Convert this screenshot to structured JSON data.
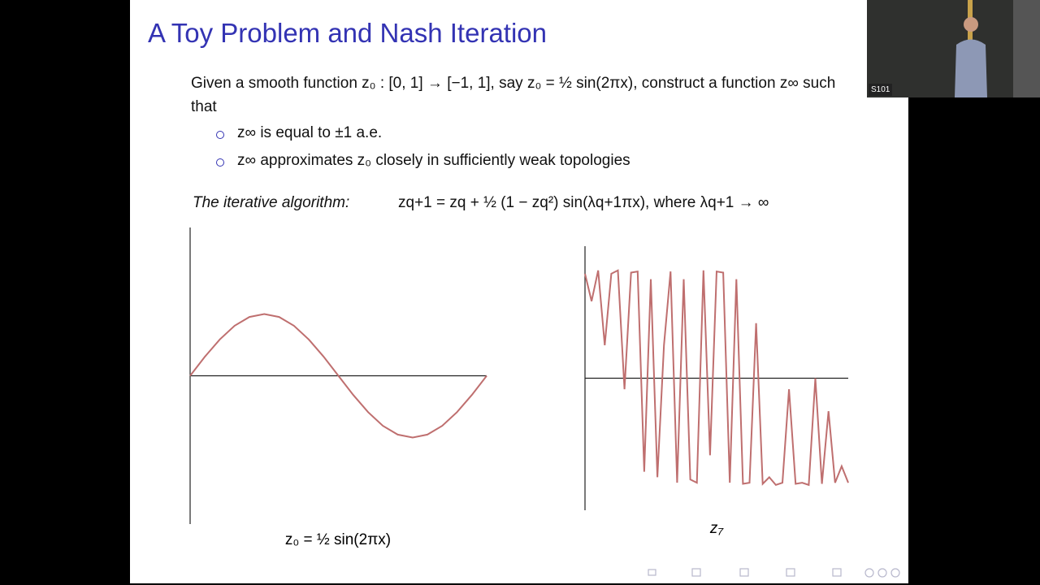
{
  "slide": {
    "title": "A Toy Problem and Nash Iteration",
    "intro": "Given a smooth function z₀ : [0, 1] → [−1, 1], say z₀ = ½ sin(2πx), construct a function z∞ such that",
    "bullets": [
      "z∞ is equal to ±1 a.e.",
      "z∞ approximates z₀ closely in sufficiently weak topologies"
    ],
    "algorithm_label": "The iterative algorithm:",
    "algorithm": "zq+1 = zq + ½ (1 − zq²) sin(λq+1πx), where λq+1 → ∞"
  },
  "chart_data": [
    {
      "type": "line",
      "caption": "z₀ = ½ sin(2πx)",
      "xlim": [
        0,
        1
      ],
      "ylim": [
        -1.2,
        1.2
      ],
      "x": [
        0,
        0.05,
        0.1,
        0.15,
        0.2,
        0.25,
        0.3,
        0.35,
        0.4,
        0.45,
        0.5,
        0.55,
        0.6,
        0.65,
        0.7,
        0.75,
        0.8,
        0.85,
        0.9,
        0.95,
        1
      ],
      "series": [
        {
          "color": "#bf6f6f",
          "values": [
            0,
            0.155,
            0.294,
            0.405,
            0.476,
            0.5,
            0.476,
            0.405,
            0.294,
            0.155,
            0,
            -0.155,
            -0.294,
            -0.405,
            -0.476,
            -0.5,
            -0.476,
            -0.405,
            -0.294,
            -0.155,
            0
          ]
        }
      ]
    },
    {
      "type": "line",
      "caption": "z₇",
      "xlim": [
        0,
        1
      ],
      "ylim": [
        -1.2,
        1.2
      ],
      "x": [
        0,
        0.025,
        0.05,
        0.075,
        0.1,
        0.125,
        0.15,
        0.175,
        0.2,
        0.225,
        0.25,
        0.275,
        0.3,
        0.325,
        0.35,
        0.375,
        0.4,
        0.425,
        0.45,
        0.475,
        0.5,
        0.525,
        0.55,
        0.575,
        0.6,
        0.625,
        0.65,
        0.675,
        0.7,
        0.725,
        0.75,
        0.775,
        0.8,
        0.825,
        0.85,
        0.875,
        0.9,
        0.925,
        0.95,
        0.975,
        1
      ],
      "series": [
        {
          "color": "#bf6f6f",
          "values": [
            0.95,
            0.7,
            0.98,
            0.3,
            0.95,
            0.98,
            -0.1,
            0.96,
            0.97,
            -0.85,
            0.9,
            -0.9,
            0.3,
            0.97,
            -0.95,
            0.9,
            -0.92,
            -0.95,
            0.98,
            -0.7,
            0.97,
            0.96,
            -0.95,
            0.9,
            -0.96,
            -0.95,
            0.5,
            -0.96,
            -0.9,
            -0.97,
            -0.95,
            -0.1,
            -0.96,
            -0.95,
            -0.97,
            0.0,
            -0.96,
            -0.3,
            -0.95,
            -0.8,
            -0.95
          ]
        }
      ]
    }
  ],
  "webcam": {
    "label": "S101"
  }
}
